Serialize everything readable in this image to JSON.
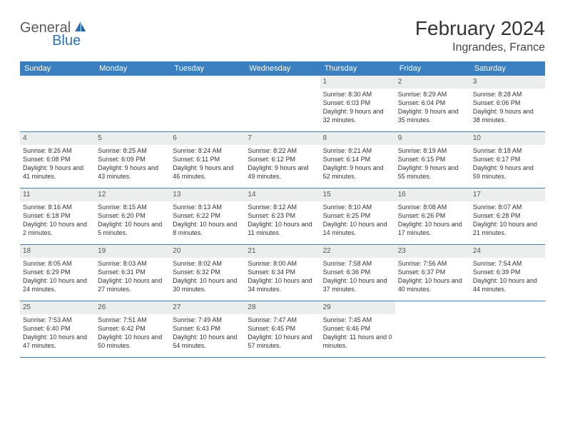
{
  "logo": {
    "part1": "General",
    "part2": "Blue"
  },
  "title": "February 2024",
  "location": "Ingrandes, France",
  "colors": {
    "header_bg": "#3a7fc0",
    "header_text": "#ffffff",
    "daynum_bg": "#eceded",
    "border": "#4a7aa8",
    "logo_gray": "#5a5a5a",
    "logo_blue": "#2b72b8"
  },
  "weekdays": [
    "Sunday",
    "Monday",
    "Tuesday",
    "Wednesday",
    "Thursday",
    "Friday",
    "Saturday"
  ],
  "weeks": [
    [
      {
        "n": "",
        "sr": "",
        "ss": "",
        "dl": ""
      },
      {
        "n": "",
        "sr": "",
        "ss": "",
        "dl": ""
      },
      {
        "n": "",
        "sr": "",
        "ss": "",
        "dl": ""
      },
      {
        "n": "",
        "sr": "",
        "ss": "",
        "dl": ""
      },
      {
        "n": "1",
        "sr": "Sunrise: 8:30 AM",
        "ss": "Sunset: 6:03 PM",
        "dl": "Daylight: 9 hours and 32 minutes."
      },
      {
        "n": "2",
        "sr": "Sunrise: 8:29 AM",
        "ss": "Sunset: 6:04 PM",
        "dl": "Daylight: 9 hours and 35 minutes."
      },
      {
        "n": "3",
        "sr": "Sunrise: 8:28 AM",
        "ss": "Sunset: 6:06 PM",
        "dl": "Daylight: 9 hours and 38 minutes."
      }
    ],
    [
      {
        "n": "4",
        "sr": "Sunrise: 8:26 AM",
        "ss": "Sunset: 6:08 PM",
        "dl": "Daylight: 9 hours and 41 minutes."
      },
      {
        "n": "5",
        "sr": "Sunrise: 8:25 AM",
        "ss": "Sunset: 6:09 PM",
        "dl": "Daylight: 9 hours and 43 minutes."
      },
      {
        "n": "6",
        "sr": "Sunrise: 8:24 AM",
        "ss": "Sunset: 6:11 PM",
        "dl": "Daylight: 9 hours and 46 minutes."
      },
      {
        "n": "7",
        "sr": "Sunrise: 8:22 AM",
        "ss": "Sunset: 6:12 PM",
        "dl": "Daylight: 9 hours and 49 minutes."
      },
      {
        "n": "8",
        "sr": "Sunrise: 8:21 AM",
        "ss": "Sunset: 6:14 PM",
        "dl": "Daylight: 9 hours and 52 minutes."
      },
      {
        "n": "9",
        "sr": "Sunrise: 8:19 AM",
        "ss": "Sunset: 6:15 PM",
        "dl": "Daylight: 9 hours and 55 minutes."
      },
      {
        "n": "10",
        "sr": "Sunrise: 8:18 AM",
        "ss": "Sunset: 6:17 PM",
        "dl": "Daylight: 9 hours and 59 minutes."
      }
    ],
    [
      {
        "n": "11",
        "sr": "Sunrise: 8:16 AM",
        "ss": "Sunset: 6:18 PM",
        "dl": "Daylight: 10 hours and 2 minutes."
      },
      {
        "n": "12",
        "sr": "Sunrise: 8:15 AM",
        "ss": "Sunset: 6:20 PM",
        "dl": "Daylight: 10 hours and 5 minutes."
      },
      {
        "n": "13",
        "sr": "Sunrise: 8:13 AM",
        "ss": "Sunset: 6:22 PM",
        "dl": "Daylight: 10 hours and 8 minutes."
      },
      {
        "n": "14",
        "sr": "Sunrise: 8:12 AM",
        "ss": "Sunset: 6:23 PM",
        "dl": "Daylight: 10 hours and 11 minutes."
      },
      {
        "n": "15",
        "sr": "Sunrise: 8:10 AM",
        "ss": "Sunset: 6:25 PM",
        "dl": "Daylight: 10 hours and 14 minutes."
      },
      {
        "n": "16",
        "sr": "Sunrise: 8:08 AM",
        "ss": "Sunset: 6:26 PM",
        "dl": "Daylight: 10 hours and 17 minutes."
      },
      {
        "n": "17",
        "sr": "Sunrise: 8:07 AM",
        "ss": "Sunset: 6:28 PM",
        "dl": "Daylight: 10 hours and 21 minutes."
      }
    ],
    [
      {
        "n": "18",
        "sr": "Sunrise: 8:05 AM",
        "ss": "Sunset: 6:29 PM",
        "dl": "Daylight: 10 hours and 24 minutes."
      },
      {
        "n": "19",
        "sr": "Sunrise: 8:03 AM",
        "ss": "Sunset: 6:31 PM",
        "dl": "Daylight: 10 hours and 27 minutes."
      },
      {
        "n": "20",
        "sr": "Sunrise: 8:02 AM",
        "ss": "Sunset: 6:32 PM",
        "dl": "Daylight: 10 hours and 30 minutes."
      },
      {
        "n": "21",
        "sr": "Sunrise: 8:00 AM",
        "ss": "Sunset: 6:34 PM",
        "dl": "Daylight: 10 hours and 34 minutes."
      },
      {
        "n": "22",
        "sr": "Sunrise: 7:58 AM",
        "ss": "Sunset: 6:36 PM",
        "dl": "Daylight: 10 hours and 37 minutes."
      },
      {
        "n": "23",
        "sr": "Sunrise: 7:56 AM",
        "ss": "Sunset: 6:37 PM",
        "dl": "Daylight: 10 hours and 40 minutes."
      },
      {
        "n": "24",
        "sr": "Sunrise: 7:54 AM",
        "ss": "Sunset: 6:39 PM",
        "dl": "Daylight: 10 hours and 44 minutes."
      }
    ],
    [
      {
        "n": "25",
        "sr": "Sunrise: 7:53 AM",
        "ss": "Sunset: 6:40 PM",
        "dl": "Daylight: 10 hours and 47 minutes."
      },
      {
        "n": "26",
        "sr": "Sunrise: 7:51 AM",
        "ss": "Sunset: 6:42 PM",
        "dl": "Daylight: 10 hours and 50 minutes."
      },
      {
        "n": "27",
        "sr": "Sunrise: 7:49 AM",
        "ss": "Sunset: 6:43 PM",
        "dl": "Daylight: 10 hours and 54 minutes."
      },
      {
        "n": "28",
        "sr": "Sunrise: 7:47 AM",
        "ss": "Sunset: 6:45 PM",
        "dl": "Daylight: 10 hours and 57 minutes."
      },
      {
        "n": "29",
        "sr": "Sunrise: 7:45 AM",
        "ss": "Sunset: 6:46 PM",
        "dl": "Daylight: 11 hours and 0 minutes."
      },
      {
        "n": "",
        "sr": "",
        "ss": "",
        "dl": ""
      },
      {
        "n": "",
        "sr": "",
        "ss": "",
        "dl": ""
      }
    ]
  ]
}
